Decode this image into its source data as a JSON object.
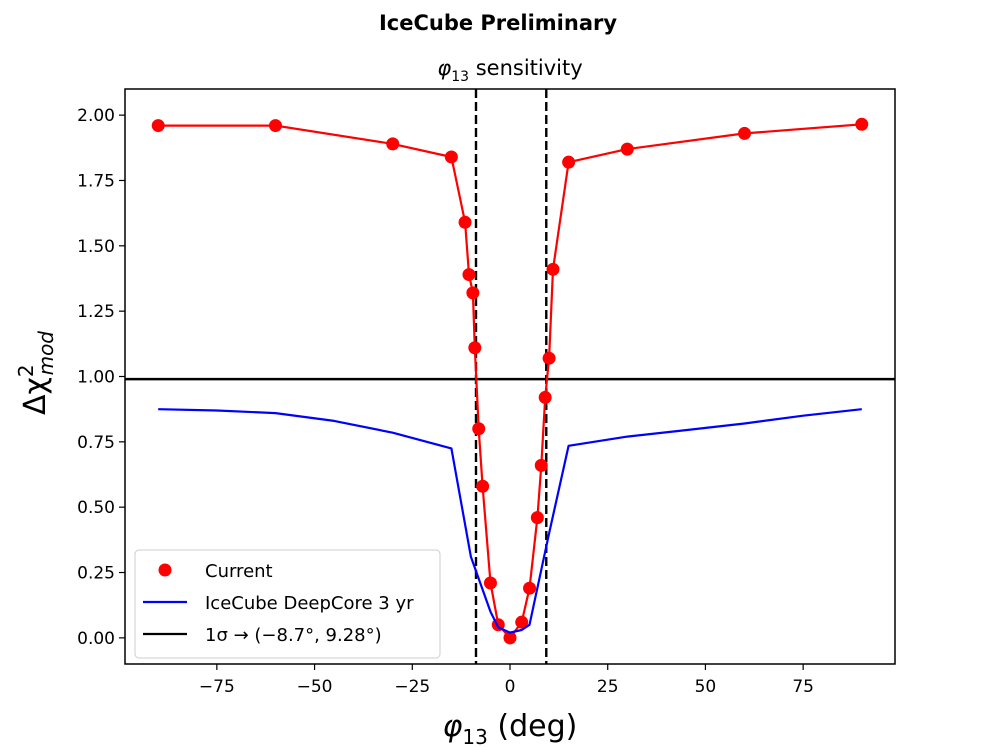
{
  "banner": "IceCube Preliminary",
  "chart_data": {
    "type": "line",
    "title_symbol": "φ",
    "title_sub": "13",
    "title_rest": " sensitivity",
    "xlabel_symbol": "φ",
    "xlabel_sub": "13",
    "xlabel_rest": " (deg)",
    "ylabel_main": "Δχ",
    "ylabel_sup": "2",
    "ylabel_sub": "mod",
    "xlim": [
      -98.5,
      98.5
    ],
    "ylim": [
      -0.1,
      2.1
    ],
    "xticks": [
      -75,
      -50,
      -25,
      0,
      25,
      50,
      75
    ],
    "xtick_labels": [
      "−75",
      "−50",
      "−25",
      "0",
      "25",
      "50",
      "75"
    ],
    "yticks": [
      0,
      0.25,
      0.5,
      0.75,
      1.0,
      1.25,
      1.5,
      1.75,
      2.0
    ],
    "ytick_labels": [
      "0.00",
      "0.25",
      "0.50",
      "0.75",
      "1.00",
      "1.25",
      "1.50",
      "1.75",
      "2.00"
    ],
    "series": [
      {
        "name": "Current",
        "color": "#ff0000",
        "marker": "circle",
        "x": [
          -90,
          -60,
          -30,
          -15,
          -11.5,
          -10.5,
          -9.5,
          -9,
          -8,
          -7,
          -5,
          -3,
          0,
          3,
          5,
          7,
          8,
          9,
          10,
          11,
          15,
          30,
          60,
          90
        ],
        "y": [
          1.96,
          1.96,
          1.89,
          1.84,
          1.59,
          1.39,
          1.32,
          1.11,
          0.8,
          0.58,
          0.21,
          0.05,
          0.0,
          0.06,
          0.19,
          0.46,
          0.66,
          0.92,
          1.07,
          1.41,
          1.82,
          1.87,
          1.93,
          1.965
        ]
      },
      {
        "name": "IceCube DeepCore 3 yr",
        "color": "#0000ff",
        "x": [
          -90,
          -75,
          -60,
          -45,
          -30,
          -15,
          -10,
          -5,
          -3,
          0,
          3,
          5,
          10,
          15,
          30,
          45,
          60,
          75,
          90
        ],
        "y": [
          0.875,
          0.87,
          0.86,
          0.83,
          0.785,
          0.725,
          0.31,
          0.1,
          0.04,
          0.02,
          0.03,
          0.05,
          0.4,
          0.735,
          0.77,
          0.795,
          0.82,
          0.85,
          0.875
        ]
      }
    ],
    "hline": {
      "y": 0.99,
      "color": "#000000"
    },
    "vlines": [
      -8.7,
      9.28
    ],
    "legend": [
      {
        "label": "Current"
      },
      {
        "label": "IceCube DeepCore 3 yr"
      },
      {
        "label": "1σ → (−8.7°, 9.28°)"
      }
    ],
    "legend_position": "lower-left"
  }
}
